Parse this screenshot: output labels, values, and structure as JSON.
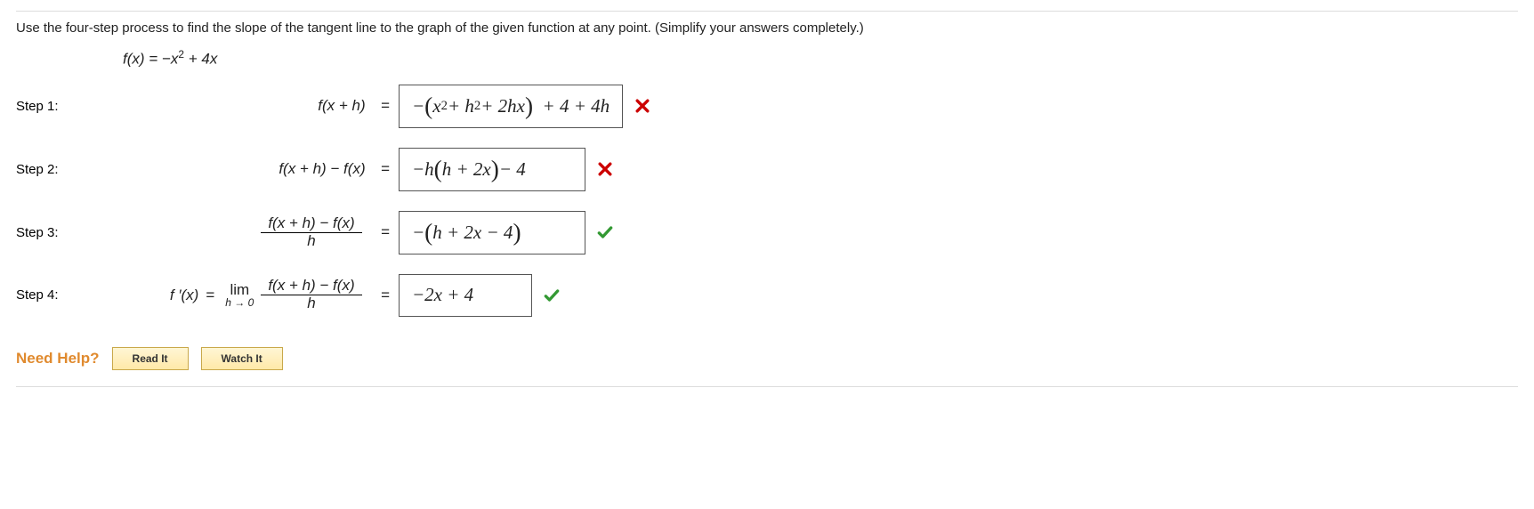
{
  "prompt": "Use the four-step process to find the slope of the tangent line to the graph of the given function at any point. (Simplify your answers completely.)",
  "function_html": "f(x) = −x<sup>2</sup> + 4x",
  "steps": [
    {
      "label": "Step 1:",
      "lhs_html": "f(x + h)&nbsp;&nbsp;<span class='eq'>=</span>",
      "answer_html": "−<span class='big-paren'>(</span>x<sup>2</sup> + h<sup>2</sup> + 2hx<span class='big-paren'>)</span>&nbsp; + 4 + 4h",
      "correct": false,
      "box_class": "wide"
    },
    {
      "label": "Step 2:",
      "lhs_html": "f(x + h) − f(x)&nbsp;&nbsp;<span class='eq'>=</span>",
      "answer_html": "−h<span class='big-paren'>(</span>h + 2x<span class='big-paren'>)</span> − 4",
      "correct": false,
      "box_class": "wide"
    },
    {
      "label": "Step 3:",
      "lhs_html": "<span class='frac'><span class='num'>f(x + h) − f(x)</span><span class='den'>h</span></span>&nbsp;&nbsp;<span class='eq'>=</span>",
      "answer_html": "−<span class='big-paren'>(</span>h + 2x − 4<span class='big-paren'>)</span>",
      "correct": true,
      "box_class": "wide"
    },
    {
      "label": "Step 4:",
      "lhs_html": "f ′(x) <span class='eq'>=</span> <span class='lim'><span>lim</span><span class='under'>h → 0</span></span> <span class='frac'><span class='num'>f(x + h) − f(x)</span><span class='den'>h</span></span>&nbsp;&nbsp;<span class='eq'>=</span>",
      "answer_html": "−2x + 4",
      "correct": true,
      "box_class": "small"
    }
  ],
  "need_help_label": "Need Help?",
  "buttons": {
    "read": "Read It",
    "watch": "Watch It"
  },
  "colors": {
    "wrong": "#cc0000",
    "right": "#339933",
    "help_label": "#e08a2e",
    "border": "#dddddd",
    "btn_border": "#c9a84a"
  }
}
